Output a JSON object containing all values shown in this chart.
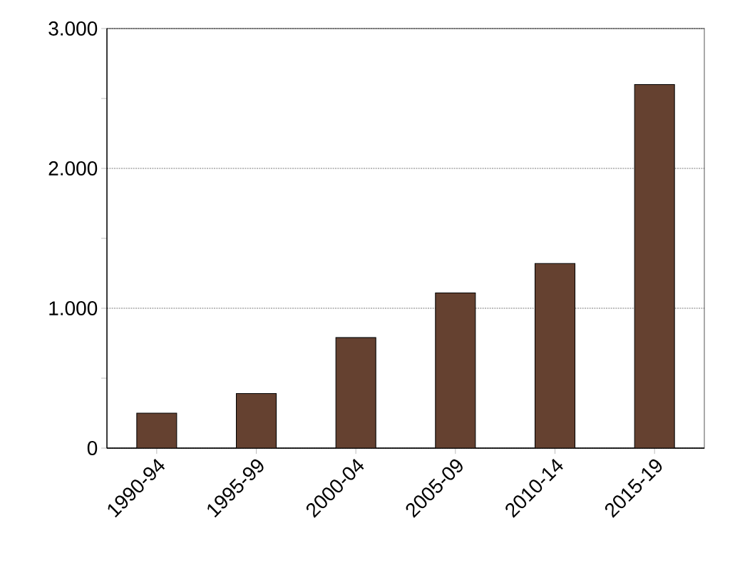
{
  "chart_data": {
    "type": "bar",
    "categories": [
      "1990-94",
      "1995-99",
      "2000-04",
      "2005-09",
      "2010-14",
      "2015-19"
    ],
    "values": [
      250,
      390,
      790,
      1110,
      1320,
      2600
    ],
    "color": "#654130",
    "ylim": [
      0,
      3000
    ],
    "yticks": [
      {
        "value": 0,
        "label": "0"
      },
      {
        "value": 500,
        "label": null
      },
      {
        "value": 1000,
        "label": "1.000"
      },
      {
        "value": 1500,
        "label": null
      },
      {
        "value": 2000,
        "label": "2.000"
      },
      {
        "value": 2500,
        "label": null
      },
      {
        "value": 3000,
        "label": "3.000"
      }
    ],
    "grid": "y"
  }
}
